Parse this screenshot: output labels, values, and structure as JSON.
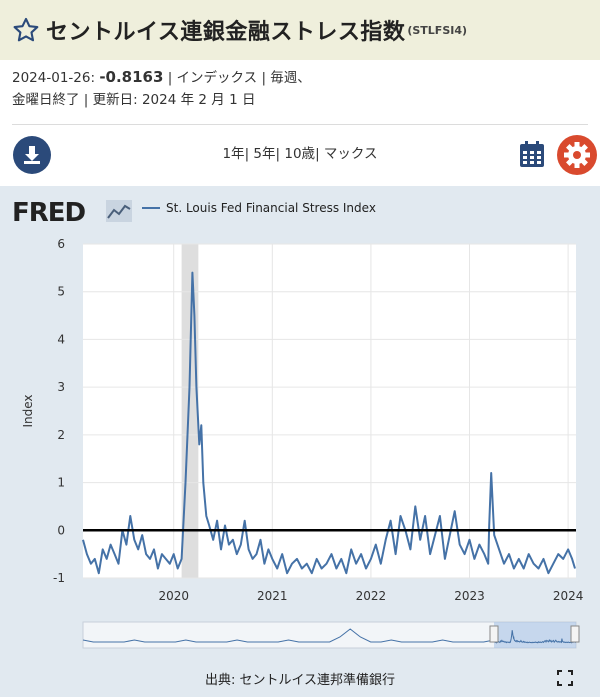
{
  "header": {
    "title": "セントルイス連銀金融ストレス指数",
    "series_id": "(STLFSI4)"
  },
  "meta": {
    "date": "2024-01-26:",
    "value": "-0.8163",
    "line1_rest": "| インデックス | 毎週、",
    "line2": "金曜日終了 | 更新日: 2024 年 2 月 1 日"
  },
  "toolbar": {
    "range_1y": "1年",
    "range_5y": "5年",
    "range_10y": "10歳",
    "range_max": "マックス",
    "sep": "|"
  },
  "chart": {
    "logo": "FRED",
    "legend": "St. Louis Fed Financial Stress Index",
    "source": "出典: セントルイス連邦準備銀行"
  },
  "icons": {
    "favorite": "star-icon",
    "download": "download-icon",
    "calendar": "calendar-icon",
    "settings": "gear-icon",
    "fullscreen": "fullscreen-icon"
  },
  "colors": {
    "line": "#4572a7",
    "header_bg": "#efefdc",
    "chart_bg": "#e1e9f0",
    "recession": "#dedede",
    "download_btn": "#2b4a7a",
    "settings_btn": "#d94a2e"
  },
  "chart_data": {
    "type": "line",
    "ylabel": "Index",
    "ylim": [
      -1,
      6
    ],
    "yticks": [
      "6",
      "5",
      "4",
      "3",
      "2",
      "1",
      "0",
      "-1"
    ],
    "xlim": [
      2019.08,
      2024.08
    ],
    "xticks": [
      {
        "x": 2020,
        "label": "2020"
      },
      {
        "x": 2021,
        "label": "2021"
      },
      {
        "x": 2022,
        "label": "2022"
      },
      {
        "x": 2023,
        "label": "2023"
      },
      {
        "x": 2024,
        "label": "2024"
      }
    ],
    "zero_line": 0,
    "recession": [
      2020.08,
      2020.25
    ],
    "series": [
      {
        "name": "St. Louis Fed Financial Stress Index",
        "x": [
          2019.08,
          2019.12,
          2019.16,
          2019.2,
          2019.24,
          2019.28,
          2019.32,
          2019.36,
          2019.4,
          2019.44,
          2019.48,
          2019.52,
          2019.56,
          2019.6,
          2019.64,
          2019.68,
          2019.72,
          2019.76,
          2019.8,
          2019.84,
          2019.88,
          2019.92,
          2019.96,
          2020.0,
          2020.04,
          2020.08,
          2020.12,
          2020.16,
          2020.19,
          2020.21,
          2020.23,
          2020.26,
          2020.28,
          2020.3,
          2020.33,
          2020.36,
          2020.4,
          2020.44,
          2020.48,
          2020.52,
          2020.56,
          2020.6,
          2020.64,
          2020.68,
          2020.72,
          2020.76,
          2020.8,
          2020.84,
          2020.88,
          2020.92,
          2020.96,
          2021.0,
          2021.05,
          2021.1,
          2021.15,
          2021.2,
          2021.25,
          2021.3,
          2021.35,
          2021.4,
          2021.45,
          2021.5,
          2021.55,
          2021.6,
          2021.65,
          2021.7,
          2021.75,
          2021.8,
          2021.85,
          2021.9,
          2021.95,
          2022.0,
          2022.05,
          2022.1,
          2022.15,
          2022.2,
          2022.25,
          2022.3,
          2022.35,
          2022.4,
          2022.45,
          2022.5,
          2022.55,
          2022.6,
          2022.65,
          2022.7,
          2022.75,
          2022.8,
          2022.85,
          2022.9,
          2022.95,
          2023.0,
          2023.05,
          2023.1,
          2023.15,
          2023.19,
          2023.2,
          2023.22,
          2023.25,
          2023.3,
          2023.35,
          2023.4,
          2023.45,
          2023.5,
          2023.55,
          2023.6,
          2023.65,
          2023.7,
          2023.75,
          2023.8,
          2023.85,
          2023.9,
          2023.95,
          2024.0,
          2024.04,
          2024.07
        ],
        "y": [
          -0.2,
          -0.5,
          -0.7,
          -0.6,
          -0.9,
          -0.4,
          -0.6,
          -0.3,
          -0.5,
          -0.7,
          0.0,
          -0.3,
          0.3,
          -0.2,
          -0.4,
          -0.1,
          -0.5,
          -0.6,
          -0.4,
          -0.8,
          -0.5,
          -0.6,
          -0.7,
          -0.5,
          -0.8,
          -0.6,
          1.0,
          3.0,
          5.4,
          4.5,
          3.0,
          1.8,
          2.2,
          1.0,
          0.3,
          0.1,
          -0.2,
          0.2,
          -0.4,
          0.1,
          -0.3,
          -0.2,
          -0.5,
          -0.3,
          0.2,
          -0.4,
          -0.6,
          -0.5,
          -0.2,
          -0.7,
          -0.4,
          -0.6,
          -0.8,
          -0.5,
          -0.9,
          -0.7,
          -0.6,
          -0.8,
          -0.7,
          -0.9,
          -0.6,
          -0.8,
          -0.7,
          -0.5,
          -0.8,
          -0.6,
          -0.9,
          -0.4,
          -0.7,
          -0.5,
          -0.8,
          -0.6,
          -0.3,
          -0.7,
          -0.2,
          0.2,
          -0.5,
          0.3,
          0.0,
          -0.4,
          0.5,
          -0.2,
          0.3,
          -0.5,
          -0.1,
          0.3,
          -0.6,
          -0.1,
          0.4,
          -0.3,
          -0.5,
          -0.2,
          -0.6,
          -0.3,
          -0.5,
          -0.7,
          0.1,
          1.2,
          -0.1,
          -0.4,
          -0.7,
          -0.5,
          -0.8,
          -0.6,
          -0.8,
          -0.5,
          -0.7,
          -0.8,
          -0.6,
          -0.9,
          -0.7,
          -0.5,
          -0.6,
          -0.4,
          -0.6,
          -0.8
        ]
      }
    ]
  }
}
